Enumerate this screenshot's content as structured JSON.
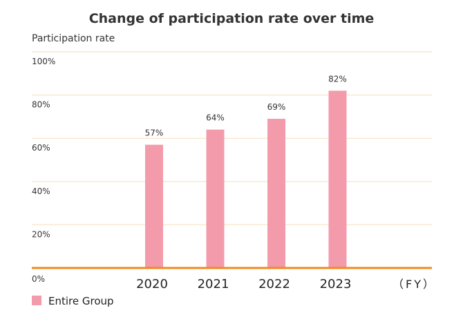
{
  "chart_data": {
    "type": "bar",
    "title": "Change of participation rate over time",
    "ylabel": "Participation rate",
    "xlabel": "",
    "x_unit": "（FY）",
    "categories": [
      "2020",
      "2021",
      "2022",
      "2023"
    ],
    "series": [
      {
        "name": "Entire Group",
        "values": [
          57,
          64,
          69,
          82
        ],
        "color": "#f39bab"
      }
    ],
    "data_labels": [
      "57%",
      "64%",
      "69%",
      "82%"
    ],
    "ylim": [
      0,
      100
    ],
    "yticks": [
      0,
      20,
      40,
      60,
      80,
      100
    ],
    "ytick_labels": [
      "0%",
      "20%",
      "40%",
      "60%",
      "80%",
      "100%"
    ],
    "grid": true,
    "grid_color": "#fbe8cf",
    "baseline_color": "#f08a1c",
    "legend_position": "bottom-left"
  }
}
